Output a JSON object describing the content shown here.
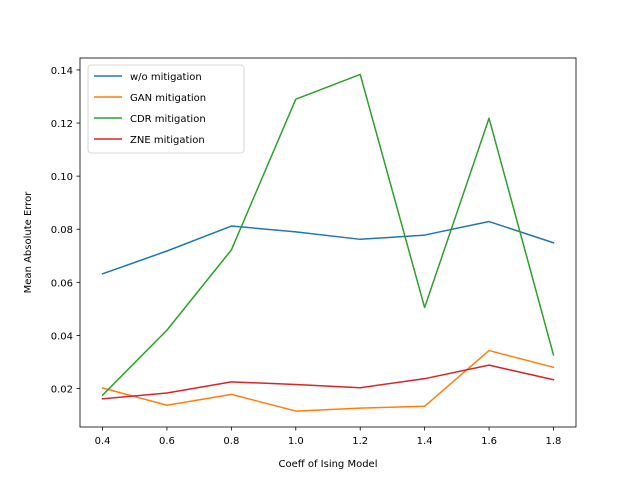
{
  "chart_data": {
    "type": "line",
    "title": "",
    "xlabel": "Coeff of Ising Model",
    "ylabel": "Mean Absolute Error",
    "x": [
      0.4,
      0.6,
      0.8,
      1.0,
      1.2,
      1.4,
      1.6,
      1.8
    ],
    "x_ticks": [
      "0.4",
      "0.6",
      "0.8",
      "1.0",
      "1.2",
      "1.4",
      "1.6",
      "1.8"
    ],
    "y_ticks": [
      "0.02",
      "0.04",
      "0.06",
      "0.08",
      "0.10",
      "0.12",
      "0.14"
    ],
    "xlim": [
      0.33,
      1.87
    ],
    "ylim": [
      0.0055,
      0.1445
    ],
    "grid": false,
    "legend_position": "top-left",
    "series": [
      {
        "name": "w/o mitigation",
        "color": "#1f77b4",
        "values": [
          0.0632,
          0.0718,
          0.0812,
          0.079,
          0.0762,
          0.0778,
          0.0829,
          0.0749
        ]
      },
      {
        "name": "GAN mitigation",
        "color": "#ff7f0e",
        "values": [
          0.0202,
          0.0137,
          0.0178,
          0.0115,
          0.0126,
          0.0133,
          0.0343,
          0.028
        ]
      },
      {
        "name": "CDR mitigation",
        "color": "#2ca02c",
        "values": [
          0.0175,
          0.042,
          0.0722,
          0.129,
          0.1383,
          0.0505,
          0.1218,
          0.0327
        ]
      },
      {
        "name": "ZNE mitigation",
        "color": "#d62728",
        "values": [
          0.0161,
          0.0183,
          0.0225,
          0.0215,
          0.0203,
          0.0237,
          0.0288,
          0.0233
        ]
      }
    ]
  }
}
